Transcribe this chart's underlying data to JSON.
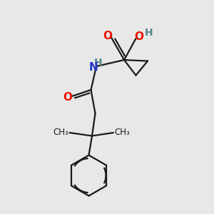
{
  "background_color": "#e8e8e8",
  "bond_color": "#1a1a1a",
  "o_color": "#ee1100",
  "n_color": "#2233cc",
  "h_color": "#558888",
  "fig_size": [
    3.0,
    3.0
  ],
  "dpi": 100,
  "xlim": [
    0,
    10
  ],
  "ylim": [
    0,
    10
  ]
}
